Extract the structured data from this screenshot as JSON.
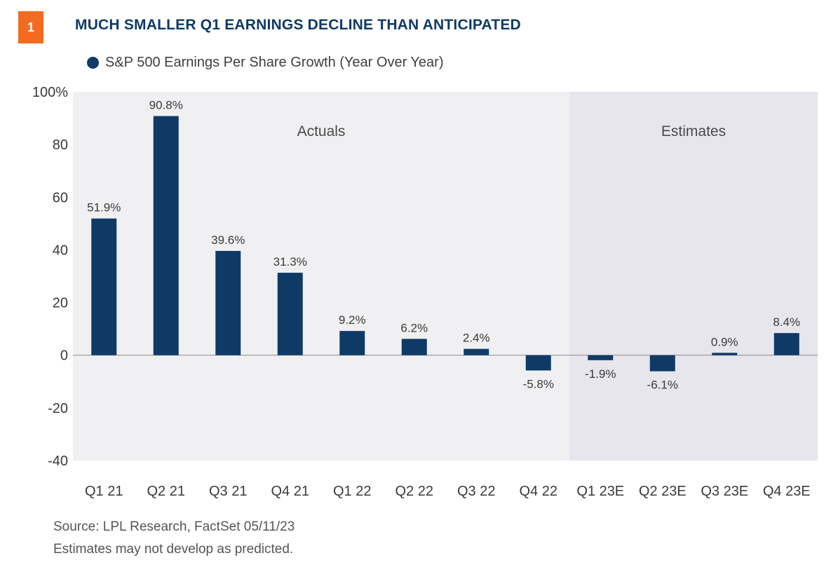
{
  "header": {
    "badge": "1",
    "title": "MUCH SMALLER Q1 EARNINGS DECLINE THAN ANTICIPATED"
  },
  "footer": {
    "source": "Source: LPL Research, FactSet  05/11/23",
    "note": "Estimates may not develop as predicted."
  },
  "chart_data": {
    "type": "bar",
    "legend": "S&P 500 Earnings Per Share Growth (Year Over Year)",
    "categories": [
      "Q1 21",
      "Q2 21",
      "Q3 21",
      "Q4 21",
      "Q1 22",
      "Q2 22",
      "Q3 22",
      "Q4 22",
      "Q1 23E",
      "Q2 23E",
      "Q3 23E",
      "Q4 23E"
    ],
    "values": [
      51.9,
      90.8,
      39.6,
      31.3,
      9.2,
      6.2,
      2.4,
      -5.8,
      -1.9,
      -6.1,
      0.9,
      8.4
    ],
    "data_labels": [
      "51.9%",
      "90.8%",
      "39.6%",
      "31.3%",
      "9.2%",
      "6.2%",
      "2.4%",
      "-5.8%",
      "-1.9%",
      "-6.1%",
      "0.9%",
      "8.4%"
    ],
    "ylim": [
      -40,
      100
    ],
    "yticks": [
      100,
      80,
      60,
      40,
      20,
      0,
      -20,
      -40
    ],
    "ytick_labels": [
      "100%",
      "80",
      "60",
      "40",
      "20",
      "0",
      "-20",
      "-40"
    ],
    "regions": [
      {
        "label": "Actuals",
        "from": "Q1 21",
        "to": "Q4 22"
      },
      {
        "label": "Estimates",
        "from": "Q1 23E",
        "to": "Q4 23E"
      }
    ],
    "colors": {
      "bar": "#0f3a66",
      "actuals_bg": "#f0f0f2",
      "estimates_bg": "#e6e6ec",
      "badge": "#f26b21"
    }
  }
}
